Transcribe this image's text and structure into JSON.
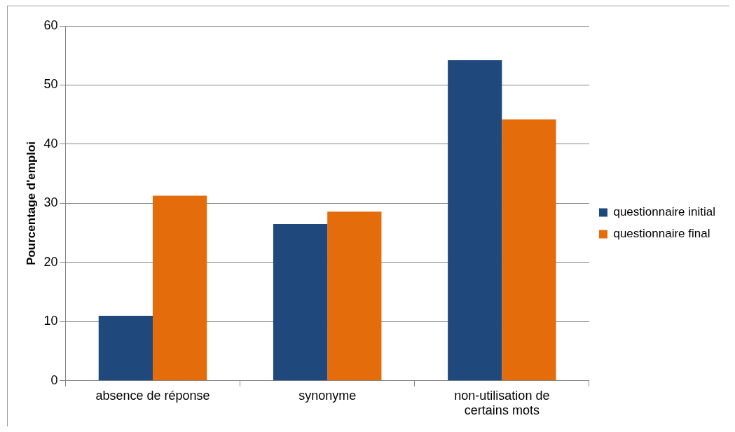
{
  "chart_data": {
    "type": "bar",
    "ylabel": "Pourcentage d'emploi",
    "categories": [
      "absence de réponse",
      "synonyme",
      "non-utilisation de certains mots"
    ],
    "series": [
      {
        "name": "questionnaire initial",
        "color": "#1f497d",
        "values": [
          11,
          26.5,
          54.2
        ]
      },
      {
        "name": "questionnaire final",
        "color": "#e46c0a",
        "values": [
          31.3,
          28.6,
          44.2
        ]
      }
    ],
    "ylim": [
      0,
      60
    ],
    "yticks": [
      0,
      10,
      20,
      30,
      40,
      50,
      60
    ],
    "grid": "y",
    "legend": "right"
  }
}
